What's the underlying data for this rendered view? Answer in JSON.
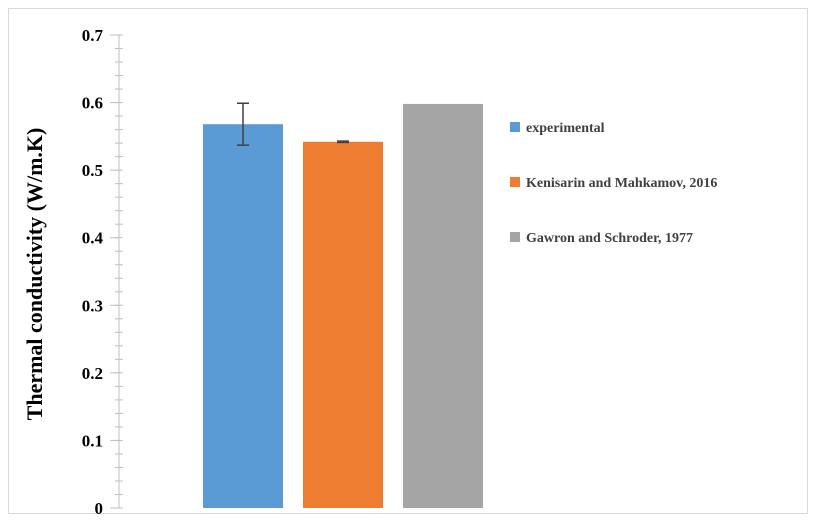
{
  "chart_data": {
    "type": "bar",
    "title": "",
    "xlabel": "",
    "ylabel": "Thermal conductivity (W/m.K)",
    "ylim": [
      0,
      0.7
    ],
    "yticks": [
      "0",
      "0.1",
      "0.2",
      "0.3",
      "0.4",
      "0.5",
      "0.6",
      "0.7"
    ],
    "minor_ticks_per_major": 5,
    "grid": false,
    "legend_position": "right",
    "series": [
      {
        "name": "experimental",
        "value": 0.568,
        "error": 0.031,
        "color": "#5B9BD5"
      },
      {
        "name": "Kenisarin and Mahkamov, 2016",
        "value": 0.542,
        "error": 0.001,
        "color": "#ED7D31"
      },
      {
        "name": "Gawron and Schroder, 1977",
        "value": 0.598,
        "error": null,
        "color": "#A5A5A5"
      }
    ]
  }
}
